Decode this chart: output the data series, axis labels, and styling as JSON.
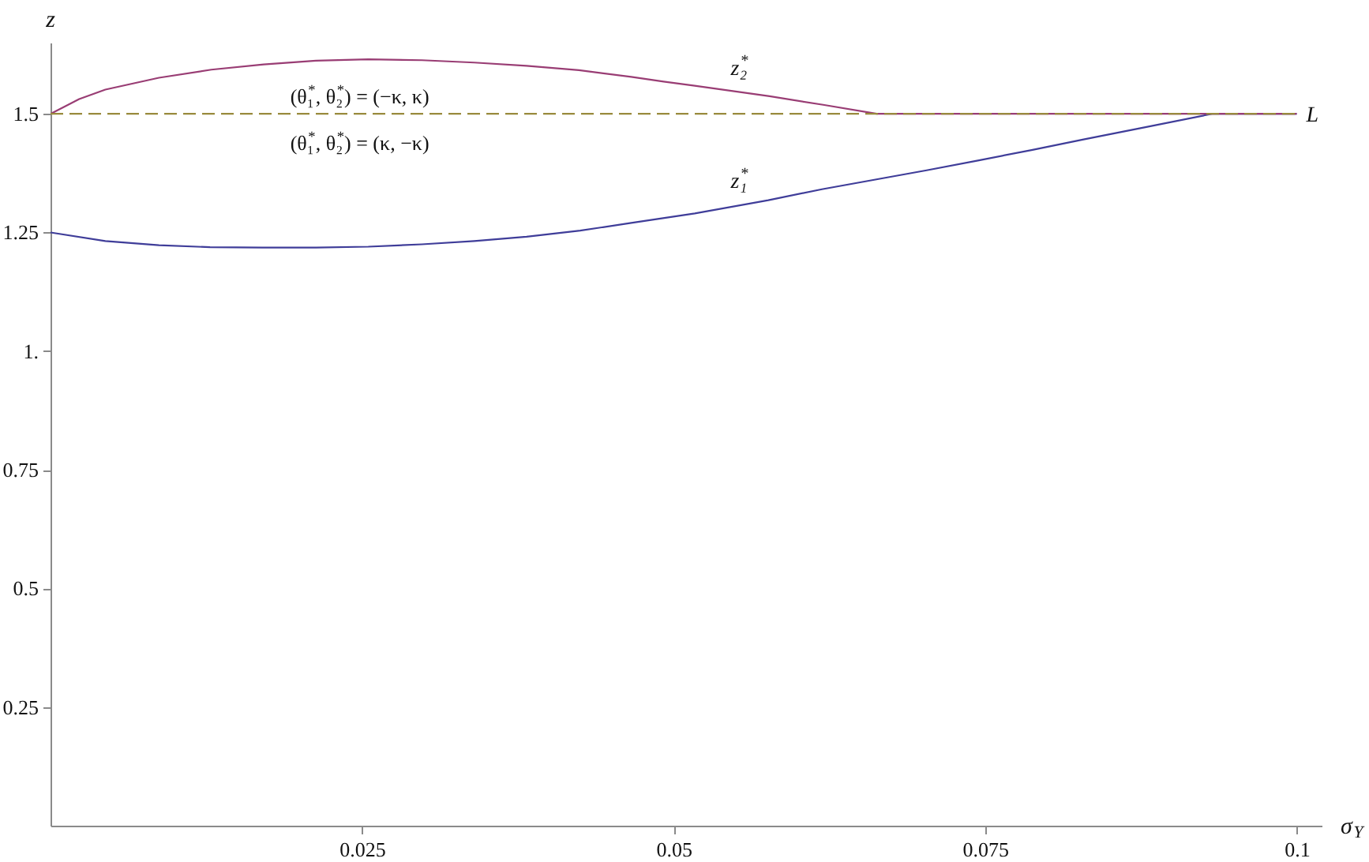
{
  "chart_data": {
    "type": "line",
    "xlabel": "σ$_{Y}$",
    "ylabel": "z",
    "xlim": [
      0,
      0.102
    ],
    "ylim": [
      0,
      1.65
    ],
    "xticks": [
      0.025,
      0.05,
      0.075,
      0.1
    ],
    "yticks": [
      0.25,
      0.5,
      0.75,
      {
        "value": 1,
        "label": "1."
      },
      1.25,
      1.5
    ],
    "grid": false,
    "series": [
      {
        "name": "z₁$^{*}$",
        "color": "#3f3d99",
        "line_style": "solid",
        "x": [
          0,
          0.0044,
          0.0087,
          0.0128,
          0.017,
          0.0213,
          0.0255,
          0.0298,
          0.034,
          0.0382,
          0.0425,
          0.0466,
          0.0517,
          0.0576,
          0.0619,
          0.0661,
          0.0703,
          0.0745,
          0.0788,
          0.0829,
          0.0881,
          0.0932,
          0.1
        ],
        "values": [
          1.25,
          1.232,
          1.223,
          1.219,
          1.218,
          1.218,
          1.22,
          1.225,
          1.232,
          1.241,
          1.254,
          1.27,
          1.29,
          1.318,
          1.341,
          1.361,
          1.381,
          1.402,
          1.424,
          1.446,
          1.473,
          1.5,
          1.5
        ]
      },
      {
        "name": "z₂$^{*}$",
        "color": "#993d74",
        "line_style": "solid",
        "x": [
          0,
          0.0023,
          0.0044,
          0.0087,
          0.0129,
          0.0171,
          0.0213,
          0.0255,
          0.0298,
          0.034,
          0.0382,
          0.0424,
          0.0466,
          0.0492,
          0.0517,
          0.0577,
          0.062,
          0.0663,
          0.1
        ],
        "values": [
          1.5,
          1.531,
          1.551,
          1.576,
          1.593,
          1.604,
          1.612,
          1.615,
          1.613,
          1.608,
          1.601,
          1.592,
          1.578,
          1.568,
          1.559,
          1.537,
          1.519,
          1.5,
          1.5
        ]
      },
      {
        "name": "L",
        "color": "#998a3d",
        "line_style": "dashed",
        "x": [
          0,
          0.1
        ],
        "values": [
          1.5,
          1.5
        ]
      }
    ],
    "annotations": [
      "(θ₁$^{*}$, θ₂$^{*}$) = (−κ, κ)",
      "(θ₁$^{*}$, θ₂$^{*}$) = (κ, −κ)"
    ]
  }
}
